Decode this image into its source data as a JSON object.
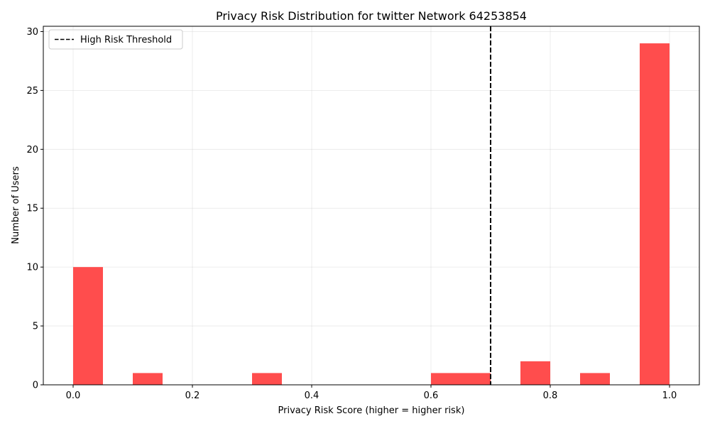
{
  "chart_data": {
    "type": "bar",
    "title": "Privacy Risk Distribution for twitter Network 64253854",
    "xlabel": "Privacy Risk Score (higher = higher risk)",
    "ylabel": "Number of Users",
    "xlim": [
      -0.05,
      1.05
    ],
    "ylim": [
      0,
      30.45
    ],
    "x_ticks": [
      0.0,
      0.2,
      0.4,
      0.6,
      0.8,
      1.0
    ],
    "x_tick_labels": [
      "0.0",
      "0.2",
      "0.4",
      "0.6",
      "0.8",
      "1.0"
    ],
    "y_ticks": [
      0,
      5,
      10,
      15,
      20,
      25,
      30
    ],
    "y_tick_labels": [
      "0",
      "5",
      "10",
      "15",
      "20",
      "25",
      "30"
    ],
    "grid": true,
    "bar_color": "#ff4d4d",
    "bins": [
      {
        "start": 0.0,
        "end": 0.05,
        "count": 10
      },
      {
        "start": 0.1,
        "end": 0.15,
        "count": 1
      },
      {
        "start": 0.3,
        "end": 0.35,
        "count": 1
      },
      {
        "start": 0.6,
        "end": 0.65,
        "count": 1
      },
      {
        "start": 0.65,
        "end": 0.7,
        "count": 1
      },
      {
        "start": 0.75,
        "end": 0.8,
        "count": 2
      },
      {
        "start": 0.85,
        "end": 0.9,
        "count": 1
      },
      {
        "start": 0.95,
        "end": 1.0,
        "count": 29
      }
    ],
    "threshold": {
      "x": 0.7,
      "label": "High Risk Threshold",
      "color": "#000000",
      "style": "dashed"
    },
    "legend": {
      "position": "top-left",
      "entries": [
        "High Risk Threshold"
      ]
    }
  }
}
